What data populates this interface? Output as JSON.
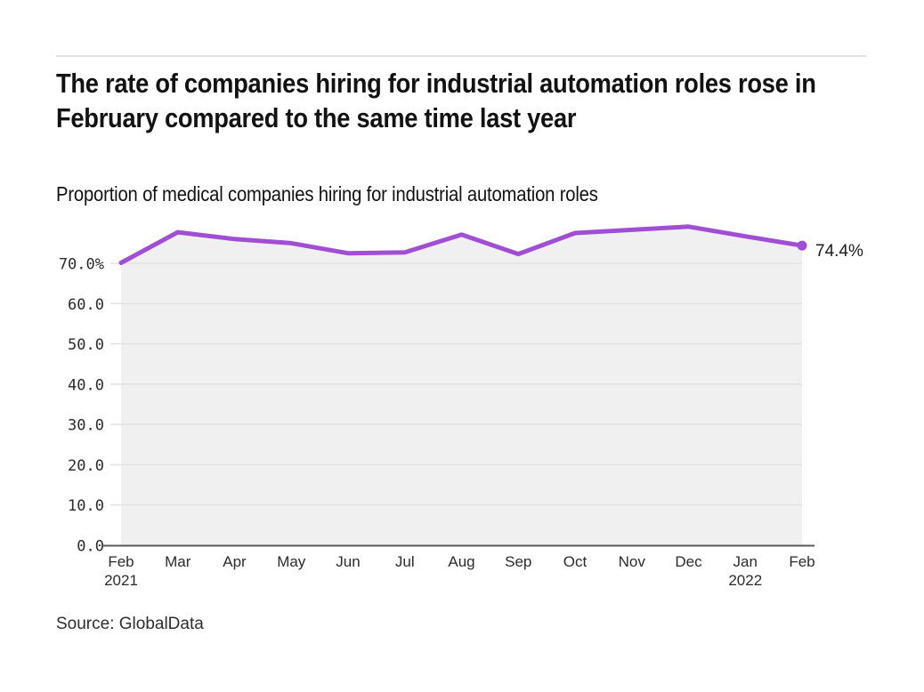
{
  "page": {
    "title": "The rate of companies hiring for industrial automation roles rose in February compared to the same time last year",
    "subtitle": "Proportion of medical companies hiring for industrial automation roles",
    "source": "Source: GlobalData"
  },
  "chart_data": {
    "type": "area",
    "title": "The rate of companies hiring for industrial automation roles rose in February compared to the same time last year",
    "subtitle": "Proportion of medical companies hiring for industrial automation roles",
    "categories": [
      {
        "label": "Feb",
        "sublabel": "2021"
      },
      {
        "label": "Mar",
        "sublabel": ""
      },
      {
        "label": "Apr",
        "sublabel": ""
      },
      {
        "label": "May",
        "sublabel": ""
      },
      {
        "label": "Jun",
        "sublabel": ""
      },
      {
        "label": "Jul",
        "sublabel": ""
      },
      {
        "label": "Aug",
        "sublabel": ""
      },
      {
        "label": "Sep",
        "sublabel": ""
      },
      {
        "label": "Oct",
        "sublabel": ""
      },
      {
        "label": "Nov",
        "sublabel": ""
      },
      {
        "label": "Dec",
        "sublabel": ""
      },
      {
        "label": "Jan",
        "sublabel": "2022"
      },
      {
        "label": "Feb",
        "sublabel": ""
      }
    ],
    "values": [
      70.1,
      77.7,
      76.0,
      75.0,
      72.5,
      72.7,
      77.1,
      72.3,
      77.5,
      78.3,
      79.1,
      76.7,
      74.4
    ],
    "end_label": "74.4%",
    "y_tick_labels": [
      "0.0",
      "10.0",
      "20.0",
      "30.0",
      "40.0",
      "50.0",
      "60.0",
      "70.0%"
    ],
    "ylim": [
      0,
      80
    ],
    "grid": "horizontal",
    "legend": "none",
    "xlabel": "",
    "ylabel": "",
    "line_color": "#a04fd4",
    "fill_color": "#f0f0f0",
    "gridline_color": "#e3e3e3",
    "axis_color": "#5a5a5a"
  }
}
